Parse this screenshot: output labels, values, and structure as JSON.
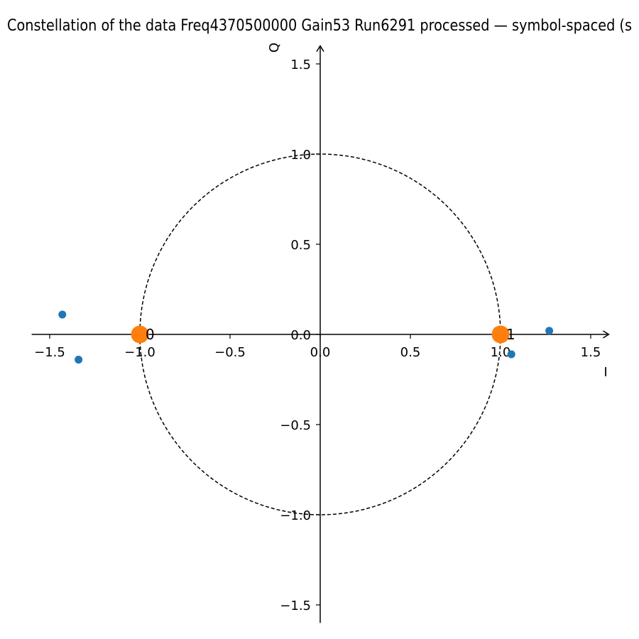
{
  "chart_data": {
    "type": "scatter",
    "title": "Constellation of the data Freq4370500000 Gain53 Run6291 processed — symbol-spaced (s",
    "xlabel": "I",
    "ylabel": "Q",
    "xlim": [
      -1.6,
      1.6
    ],
    "ylim": [
      -1.6,
      1.6
    ],
    "xticks": [
      -1.5,
      -1.0,
      -0.5,
      0.0,
      0.5,
      1.0,
      1.5
    ],
    "yticks": [
      -1.5,
      -1.0,
      -0.5,
      0.0,
      0.5,
      1.0,
      1.5
    ],
    "xtick_labels": [
      "−1.5",
      "−1.0",
      "−0.5",
      "0.0",
      "0.5",
      "1.0",
      "1.5"
    ],
    "ytick_labels": [
      "−1.5",
      "−1.0",
      "−0.5",
      "0.0",
      "0.5",
      "1.0",
      "1.5"
    ],
    "grid": false,
    "unit_circle": true,
    "series": [
      {
        "color": "#1f77b4",
        "points": [
          {
            "x": -1.43,
            "y": 0.11
          },
          {
            "x": -1.34,
            "y": -0.14
          },
          {
            "x": 0.98,
            "y": 0.02
          },
          {
            "x": 1.06,
            "y": -0.11
          },
          {
            "x": 1.27,
            "y": 0.02
          }
        ]
      },
      {
        "color": "#ff7f0e",
        "points": [
          {
            "x": -1.0,
            "y": 0.0,
            "label": "0"
          },
          {
            "x": 1.0,
            "y": 0.0,
            "label": "1"
          }
        ]
      }
    ]
  }
}
